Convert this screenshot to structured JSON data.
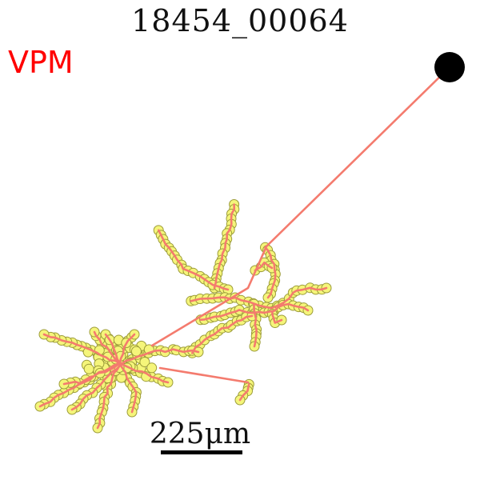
{
  "title": "18454_00064",
  "region_label": "VPM",
  "scale_bar": {
    "value": 225,
    "unit": "μm",
    "label": "225μm"
  },
  "colors": {
    "region": "#ff0000",
    "axon": "#f47b6e",
    "bouton_fill": "#f5f57a",
    "bouton_edge": "#9c9c3a",
    "soma": "#000000",
    "text": "#111111"
  }
}
